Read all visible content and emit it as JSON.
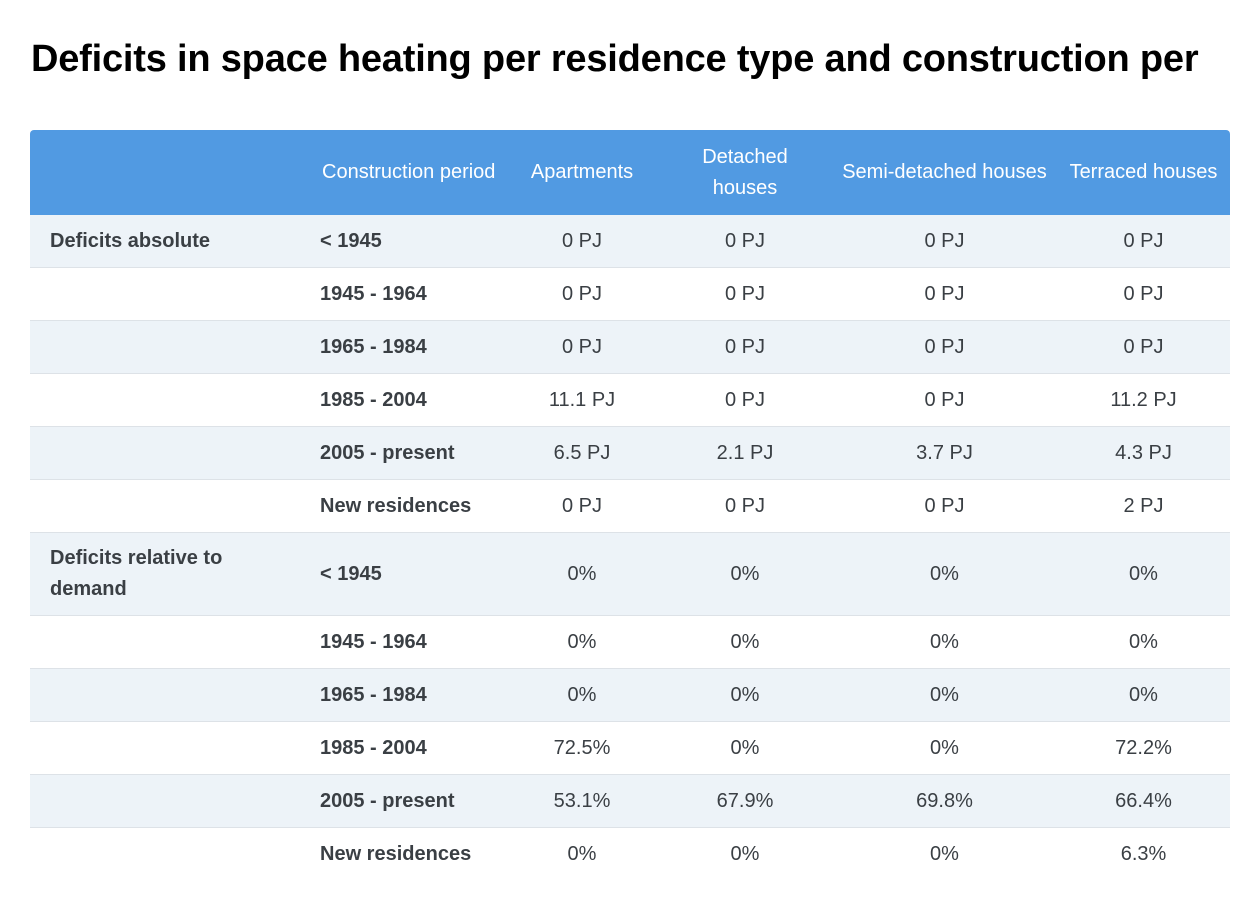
{
  "title": "Deficits in space heating per residence type and construction per",
  "table": {
    "headers": [
      "",
      "Construction period",
      "Apartments",
      "Detached houses",
      "Semi-detached houses",
      "Terraced houses"
    ],
    "rows": [
      {
        "group": "Deficits absolute",
        "period": "< 1945",
        "values": [
          "0 PJ",
          "0 PJ",
          "0 PJ",
          "0 PJ"
        ]
      },
      {
        "group": "",
        "period": "1945 - 1964",
        "values": [
          "0 PJ",
          "0 PJ",
          "0 PJ",
          "0 PJ"
        ]
      },
      {
        "group": "",
        "period": "1965 - 1984",
        "values": [
          "0 PJ",
          "0 PJ",
          "0 PJ",
          "0 PJ"
        ]
      },
      {
        "group": "",
        "period": "1985 - 2004",
        "values": [
          "11.1 PJ",
          "0 PJ",
          "0 PJ",
          "11.2 PJ"
        ]
      },
      {
        "group": "",
        "period": "2005 - present",
        "values": [
          "6.5 PJ",
          "2.1 PJ",
          "3.7 PJ",
          "4.3 PJ"
        ]
      },
      {
        "group": "",
        "period": "New residences",
        "values": [
          "0 PJ",
          "0 PJ",
          "0 PJ",
          "2 PJ"
        ]
      },
      {
        "group": "Deficits relative to demand",
        "period": "< 1945",
        "values": [
          "0%",
          "0%",
          "0%",
          "0%"
        ]
      },
      {
        "group": "",
        "period": "1945 - 1964",
        "values": [
          "0%",
          "0%",
          "0%",
          "0%"
        ]
      },
      {
        "group": "",
        "period": "1965 - 1984",
        "values": [
          "0%",
          "0%",
          "0%",
          "0%"
        ]
      },
      {
        "group": "",
        "period": "1985 - 2004",
        "values": [
          "72.5%",
          "0%",
          "0%",
          "72.2%"
        ]
      },
      {
        "group": "",
        "period": "2005 - present",
        "values": [
          "53.1%",
          "67.9%",
          "69.8%",
          "66.4%"
        ]
      },
      {
        "group": "",
        "period": "New residences",
        "values": [
          "0%",
          "0%",
          "0%",
          "6.3%"
        ]
      }
    ]
  },
  "colors": {
    "header_bg": "#519ae2",
    "row_alt_bg": "#edf3f8",
    "text": "#3a3f44"
  }
}
